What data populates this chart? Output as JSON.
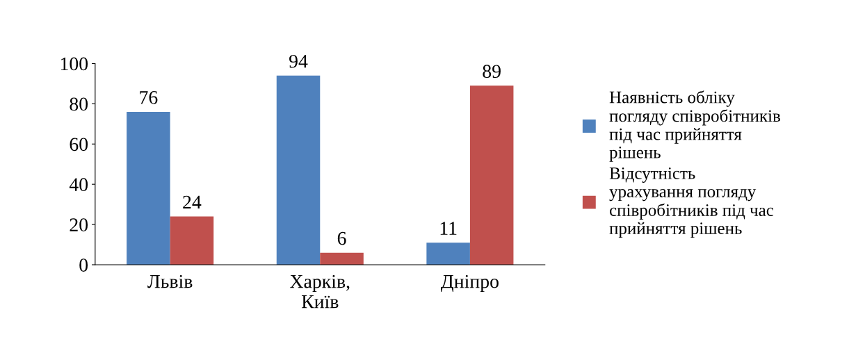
{
  "chart_data": {
    "type": "bar",
    "categories": [
      "Львів",
      "Харків,\nКиїв",
      "Дніпро"
    ],
    "series": [
      {
        "name": "Наявність обліку\nпогляду співробітників\nпід час прийняття\nрішень",
        "color": "#4f81bd",
        "values": [
          76,
          94,
          11
        ]
      },
      {
        "name": "Відсутність\nурахування погляду\nспівробітників під час\nприйняття рішень",
        "color": "#c0504d",
        "values": [
          24,
          6,
          89
        ]
      }
    ],
    "ylim": [
      0,
      100
    ],
    "yticks": [
      0,
      20,
      40,
      60,
      80,
      100
    ],
    "data_labels": true,
    "grid": false,
    "legend": "right"
  }
}
